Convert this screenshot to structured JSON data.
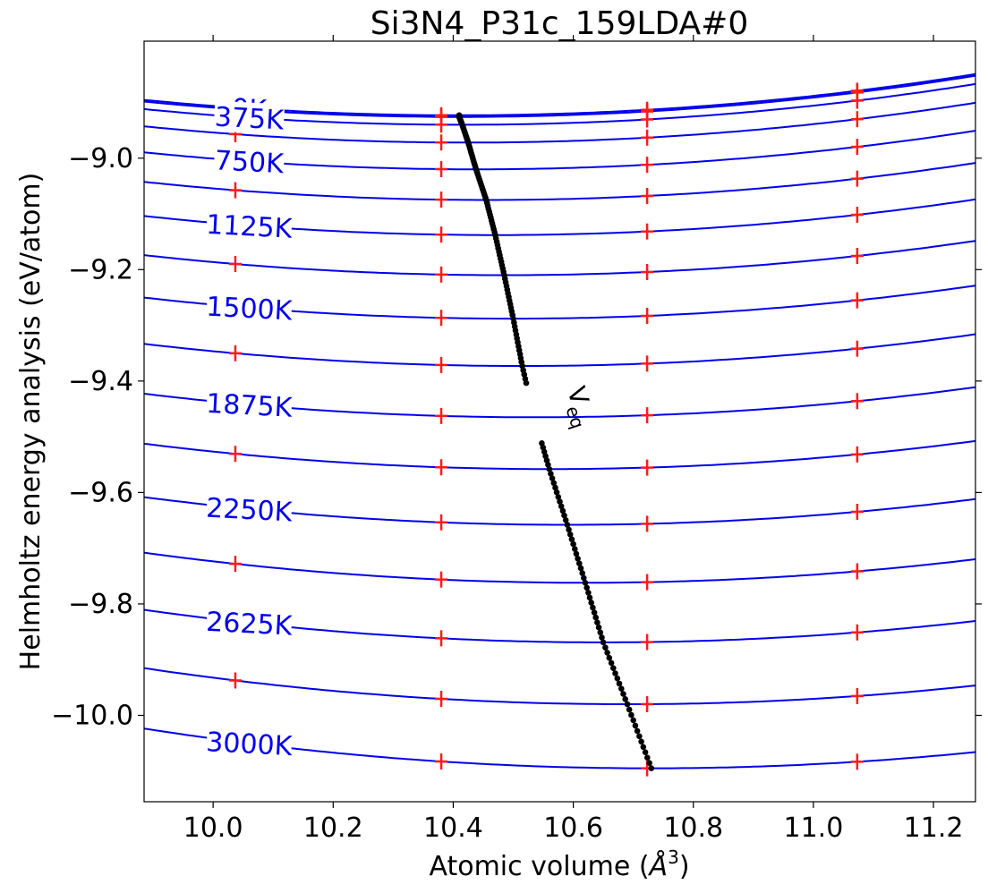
{
  "chart_data": {
    "type": "line",
    "title": "Si3N4_P31c_159LDA#0",
    "xlabel": "Atomic volume (",
    "xlabel_unit": "Å",
    "xlabel_exp": "3",
    "xlabel_close": ")",
    "ylabel": "Helmholtz energy analysis (eV/atom)",
    "xlim": [
      9.885,
      11.27
    ],
    "ylim": [
      -10.155,
      -8.79
    ],
    "grid": false,
    "x_ticks": [
      10.0,
      10.2,
      10.4,
      10.6,
      10.8,
      11.0,
      11.2
    ],
    "x_tick_labels": [
      "10.0",
      "10.2",
      "10.4",
      "10.6",
      "10.8",
      "11.0",
      "11.2"
    ],
    "y_ticks": [
      -9.0,
      -9.2,
      -9.4,
      -9.6,
      -9.8,
      -10.0
    ],
    "y_tick_labels": [
      "−9.0",
      "−9.2",
      "−9.4",
      "−9.6",
      "−9.8",
      "−10.0"
    ],
    "sample_volumes": [
      10.037,
      10.38,
      10.723,
      11.073
    ],
    "curve_color": "#0000ee",
    "sample_color": "#ff1a1a",
    "veq_color": "#000000",
    "temperature_label_color": "#0000ee",
    "isotherms": [
      {
        "T": 0,
        "v0": 10.41,
        "e0": -8.923,
        "c": 0.1
      },
      {
        "T": 188,
        "v0": 10.41,
        "e0": -8.926,
        "c": 0.1
      },
      {
        "T": 375,
        "v0": 10.415,
        "e0": -8.94,
        "c": 0.1
      },
      {
        "T": 562,
        "v0": 10.425,
        "e0": -8.972,
        "c": 0.1
      },
      {
        "T": 750,
        "v0": 10.438,
        "e0": -9.02,
        "c": 0.1
      },
      {
        "T": 938,
        "v0": 10.455,
        "e0": -9.075,
        "c": 0.1
      },
      {
        "T": 1125,
        "v0": 10.47,
        "e0": -9.138,
        "c": 0.1
      },
      {
        "T": 1312,
        "v0": 10.485,
        "e0": -9.21,
        "c": 0.1
      },
      {
        "T": 1500,
        "v0": 10.5,
        "e0": -9.288,
        "c": 0.1
      },
      {
        "T": 1688,
        "v0": 10.515,
        "e0": -9.373,
        "c": 0.1
      },
      {
        "T": 1875,
        "v0": 10.535,
        "e0": -9.465,
        "c": 0.1
      },
      {
        "T": 2062,
        "v0": 10.56,
        "e0": -9.558,
        "c": 0.1
      },
      {
        "T": 2250,
        "v0": 10.59,
        "e0": -9.658,
        "c": 0.1
      },
      {
        "T": 2438,
        "v0": 10.62,
        "e0": -9.762,
        "c": 0.1
      },
      {
        "T": 2625,
        "v0": 10.65,
        "e0": -9.869,
        "c": 0.1
      },
      {
        "T": 2812,
        "v0": 10.69,
        "e0": -9.98,
        "c": 0.1
      },
      {
        "T": 3000,
        "v0": 10.73,
        "e0": -10.095,
        "c": 0.1
      }
    ],
    "temperature_labels": [
      {
        "text": "0K",
        "T": 0
      },
      {
        "text": "375K",
        "T": 375
      },
      {
        "text": "750K",
        "T": 750
      },
      {
        "text": "1125K",
        "T": 1125
      },
      {
        "text": "1500K",
        "T": 1500
      },
      {
        "text": "1875K",
        "T": 1875
      },
      {
        "text": "2250K",
        "T": 2250
      },
      {
        "text": "2625K",
        "T": 2625
      },
      {
        "text": "3000K",
        "T": 3000
      }
    ],
    "veq_label": "V",
    "veq_subscript": "eq",
    "veq_label_point": {
      "x": 10.6,
      "y": -9.45
    }
  }
}
